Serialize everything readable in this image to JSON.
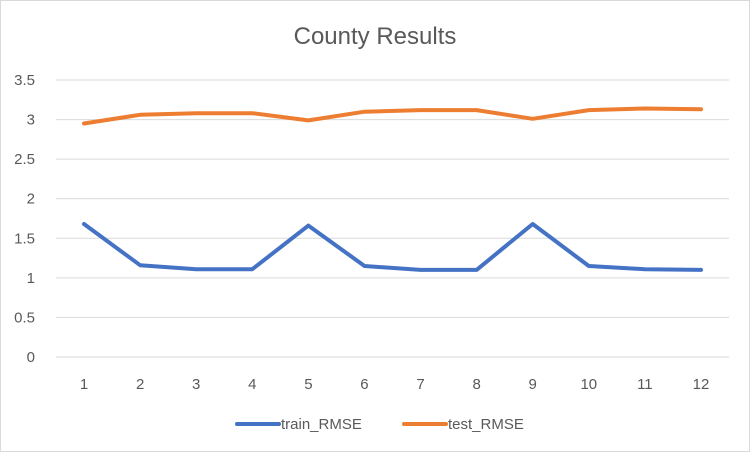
{
  "chart_data": {
    "type": "line",
    "title": "County Results",
    "x": [
      "1",
      "2",
      "3",
      "4",
      "5",
      "6",
      "7",
      "8",
      "9",
      "10",
      "11",
      "12"
    ],
    "ylim": [
      0,
      3.5
    ],
    "yticks": [
      "0",
      "0.5",
      "1",
      "1.5",
      "2",
      "2.5",
      "3",
      "3.5"
    ],
    "grid": true,
    "legend_position": "bottom",
    "series": [
      {
        "name": "train_RMSE",
        "color": "#4472C4",
        "values": [
          1.68,
          1.16,
          1.11,
          1.11,
          1.66,
          1.15,
          1.1,
          1.1,
          1.68,
          1.15,
          1.11,
          1.1
        ]
      },
      {
        "name": "test_RMSE",
        "color": "#ED7D31",
        "values": [
          2.95,
          3.06,
          3.08,
          3.08,
          2.99,
          3.1,
          3.12,
          3.12,
          3.01,
          3.12,
          3.14,
          3.13
        ]
      }
    ]
  }
}
